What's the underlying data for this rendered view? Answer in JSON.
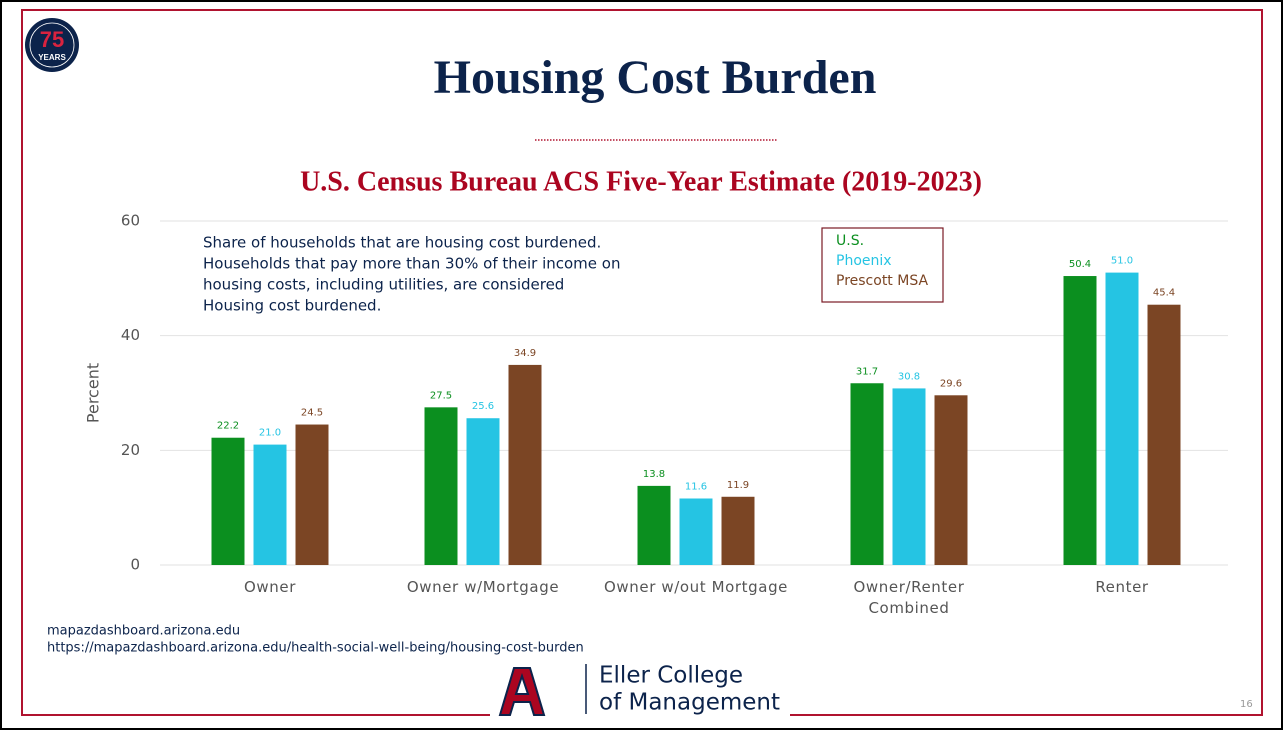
{
  "slide": {
    "logo_number": "75",
    "logo_text": "YEARS",
    "footer_lines": [
      "mapazdashboard.arizona.edu",
      "https://mapazdashboard.arizona.edu/health-social-well-being/housing-cost-burden"
    ],
    "college_lines": [
      "Eller College",
      "of Management"
    ],
    "page_number": "16"
  },
  "chart_data": {
    "type": "bar",
    "title": "Housing Cost Burden",
    "subtitle": "U.S. Census Bureau ACS Five-Year Estimate (2019-2023)",
    "annotation": [
      "Share of households that are housing cost burdened.",
      "Households that pay more than 30% of their income on",
      "housing costs, including utilities, are considered",
      "Housing cost burdened."
    ],
    "y_label": "Percent",
    "categories": [
      "Owner",
      "Owner w/Mortgage",
      "Owner w/out Mortgage",
      "Owner/Renter Combined",
      "Renter"
    ],
    "series": [
      {
        "name": "U.S.",
        "color": "#0b8f1f",
        "values": [
          22.2,
          27.5,
          13.8,
          31.7,
          50.4
        ],
        "value_labels": [
          "22.2",
          "27.5",
          "13.8",
          "31.7",
          "50.4"
        ]
      },
      {
        "name": "Phoenix",
        "color": "#25c4e3",
        "values": [
          21.0,
          25.6,
          11.6,
          30.8,
          51.0
        ],
        "value_labels": [
          "21.0",
          "25.6",
          "11.6",
          "30.8",
          "51.0"
        ]
      },
      {
        "name": "Prescott MSA",
        "color": "#7b4524",
        "values": [
          24.5,
          34.9,
          11.9,
          29.6,
          45.4
        ],
        "value_labels": [
          "24.5",
          "34.9",
          "11.9",
          "29.6",
          "45.4"
        ]
      }
    ],
    "ylim": [
      0,
      60
    ],
    "yticks": [
      0,
      20,
      40,
      60
    ],
    "grid": true,
    "legend": "top-right"
  }
}
